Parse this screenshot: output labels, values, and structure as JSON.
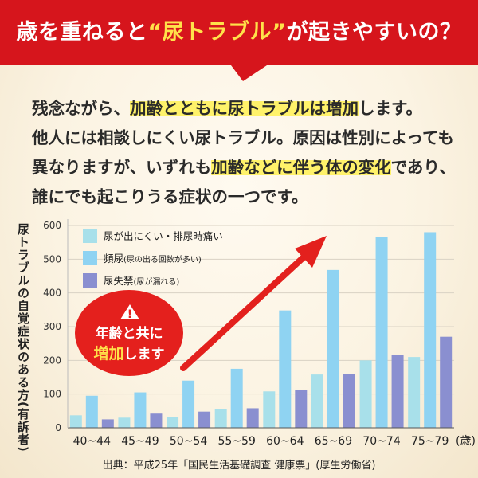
{
  "banner": {
    "title_pre": "歳を重ねると",
    "title_hl": "“尿トラブル”",
    "title_post": "が起きやすいの？",
    "color": "#d6151c"
  },
  "body": {
    "line1_a": "残念ながら、",
    "line1_hl": "加齢とともに尿トラブルは増加",
    "line1_b": "します。",
    "line2": "他人には相談しにくい尿トラブル。原因は性別によっても",
    "line3_a": "異なりますが、いずれも",
    "line3_hl": "加齢などに伴う体の変化",
    "line3_b": "であり、",
    "line4": "誰にでも起こりうる症状の一つです。"
  },
  "badge": {
    "icon": "warning-icon",
    "line1": "年齢と共に",
    "line2_hl": "増加",
    "line2_rest": "します",
    "color": "#e4201d"
  },
  "source": "出典：平成25年「国民生活基礎調査  健康票」(厚生労働省)",
  "chart_data": {
    "type": "bar",
    "ylabel": "尿トラブルの自覚症状のある方(有訴者)",
    "xunit": "(歳)",
    "ylim": [
      0,
      600
    ],
    "yticks": [
      0,
      100,
      200,
      300,
      400,
      500,
      600
    ],
    "grid": true,
    "legend_position": "top-left",
    "categories": [
      "40~44",
      "45~49",
      "50~54",
      "55~59",
      "60~64",
      "65~69",
      "70~74",
      "75~79"
    ],
    "series": [
      {
        "name": "尿が出にくい・排尿時痛い",
        "sub": "",
        "color": "#a8e0ea",
        "values": [
          37,
          30,
          33,
          55,
          108,
          158,
          200,
          210
        ]
      },
      {
        "name": "頻尿",
        "sub": "(尿の出る回数が多い)",
        "color": "#8fd3f2",
        "values": [
          95,
          105,
          140,
          175,
          348,
          468,
          565,
          580
        ]
      },
      {
        "name": "尿失禁",
        "sub": "(尿が漏れる)",
        "color": "#8a8fd0",
        "values": [
          25,
          42,
          48,
          58,
          113,
          160,
          215,
          270
        ]
      }
    ]
  }
}
